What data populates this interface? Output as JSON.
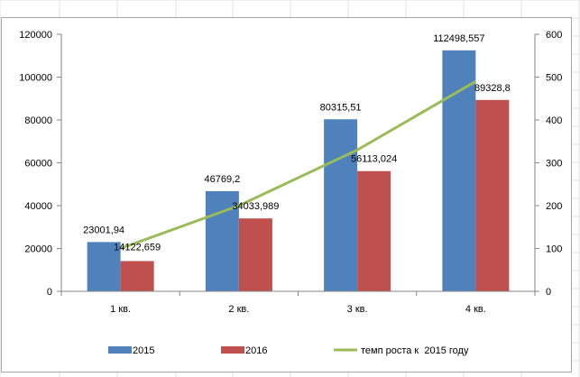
{
  "chart_data": {
    "type": "bar",
    "categories": [
      "1 кв.",
      "2 кв.",
      "3 кв.",
      "4 кв."
    ],
    "series": [
      {
        "name": "2015",
        "kind": "bar",
        "axis": "left",
        "color": "#4F81BD",
        "values": [
          23001.94,
          46769.2,
          80315.51,
          112498.557
        ],
        "labels": [
          "23001,94",
          "46769,2",
          "80315,51",
          "112498,557"
        ]
      },
      {
        "name": "2016",
        "kind": "bar",
        "axis": "left",
        "color": "#C0504D",
        "values": [
          14122.659,
          34033.989,
          56113.024,
          89328.8
        ],
        "labels": [
          "14122,659",
          "34033,989",
          "56113,024",
          "89328,8"
        ]
      },
      {
        "name": "темп роста к  2015 году",
        "kind": "line",
        "axis": "right",
        "color": "#9BBB59",
        "values": [
          100,
          200,
          330,
          490
        ]
      }
    ],
    "ylim": [
      0,
      120000
    ],
    "yticks": [
      0,
      20000,
      40000,
      60000,
      80000,
      100000,
      120000
    ],
    "y2lim": [
      0,
      600
    ],
    "y2ticks": [
      0,
      100,
      200,
      300,
      400,
      500,
      600
    ],
    "grid": false,
    "legend": "bottom"
  }
}
